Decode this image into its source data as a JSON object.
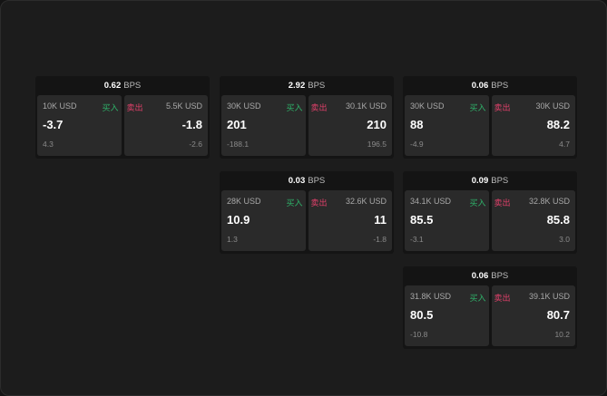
{
  "colors": {
    "buy": "#2fb36a",
    "sell": "#e0406a"
  },
  "buy_label": "买入",
  "sell_label": "卖出",
  "unit": "BPS",
  "cards": [
    {
      "spread": "0.62",
      "bid": {
        "size": "10K USD",
        "price": "-3.7",
        "change": "4.3"
      },
      "ask": {
        "size": "5.5K USD",
        "price": "-1.8",
        "change": "-2.6"
      }
    },
    {
      "spread": "2.92",
      "bid": {
        "size": "30K USD",
        "price": "201",
        "change": "-188.1"
      },
      "ask": {
        "size": "30.1K USD",
        "price": "210",
        "change": "196.5"
      }
    },
    {
      "spread": "0.06",
      "bid": {
        "size": "30K USD",
        "price": "88",
        "change": "-4.9"
      },
      "ask": {
        "size": "30K USD",
        "price": "88.2",
        "change": "4.7"
      }
    },
    {
      "spread": "0.03",
      "bid": {
        "size": "28K USD",
        "price": "10.9",
        "change": "1.3"
      },
      "ask": {
        "size": "32.6K USD",
        "price": "11",
        "change": "-1.8"
      }
    },
    {
      "spread": "0.09",
      "bid": {
        "size": "34.1K USD",
        "price": "85.5",
        "change": "-3.1"
      },
      "ask": {
        "size": "32.8K USD",
        "price": "85.8",
        "change": "3.0"
      }
    },
    {
      "spread": "0.06",
      "bid": {
        "size": "31.8K USD",
        "price": "80.5",
        "change": "-10.8"
      },
      "ask": {
        "size": "39.1K USD",
        "price": "80.7",
        "change": "10.2"
      }
    }
  ]
}
